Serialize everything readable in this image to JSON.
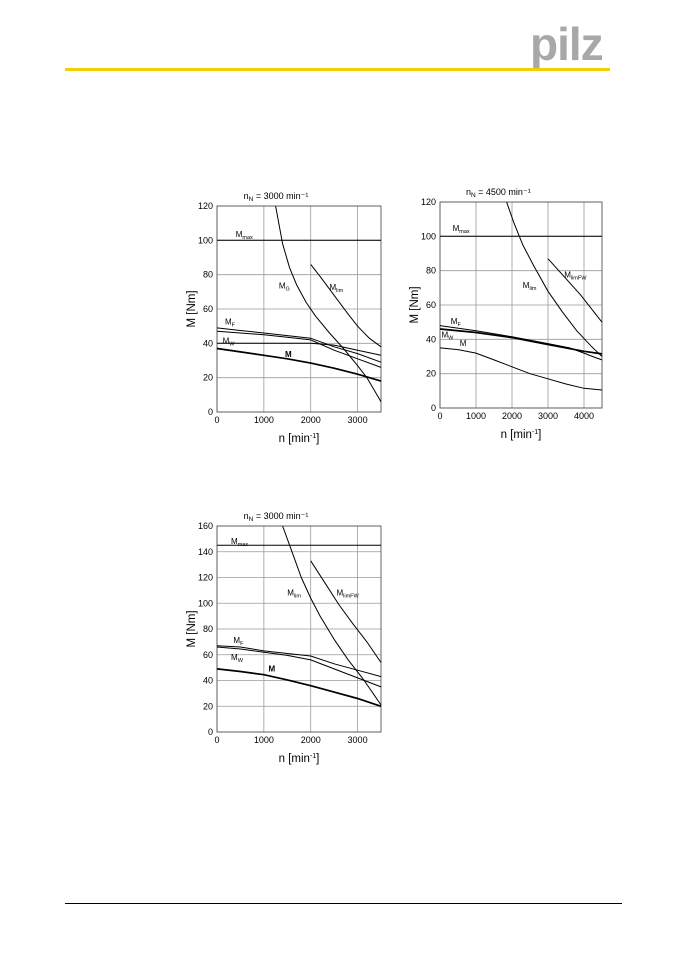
{
  "header": {
    "accent_color": "#f0d000",
    "logo_color": "#a8a8a8",
    "logo_text": "pilz"
  },
  "chart_data": [
    {
      "type": "line",
      "title": "n_N = 3000 min⁻¹",
      "xlabel": "n [min⁻¹]",
      "ylabel": "M [Nm]",
      "xlim": [
        0,
        3500
      ],
      "ylim": [
        0,
        120
      ],
      "xticks": [
        0,
        1000,
        2000,
        3000
      ],
      "yticks": [
        0,
        20,
        40,
        60,
        80,
        100,
        120
      ],
      "grid": true,
      "series": [
        {
          "name": "M_max",
          "label_main": "M",
          "label_sub": "max",
          "label_at": [
            400,
            102
          ],
          "weight": "normal",
          "points": [
            [
              0,
              100
            ],
            [
              3500,
              100
            ]
          ]
        },
        {
          "name": "M_G",
          "label_main": "M",
          "label_sub": "G",
          "label_at": [
            1320,
            72
          ],
          "weight": "normal",
          "points": [
            [
              1250,
              120
            ],
            [
              1400,
              98
            ],
            [
              1550,
              84
            ],
            [
              1700,
              74
            ],
            [
              1900,
              64
            ],
            [
              2100,
              56
            ],
            [
              2400,
              46
            ],
            [
              2700,
              37
            ],
            [
              3000,
              27
            ],
            [
              3200,
              20
            ],
            [
              3350,
              13
            ],
            [
              3500,
              6
            ]
          ]
        },
        {
          "name": "M_lim",
          "label_main": "M",
          "label_sub": "lim",
          "label_at": [
            2400,
            71
          ],
          "weight": "normal",
          "points": [
            [
              2000,
              86
            ],
            [
              2200,
              79
            ],
            [
              2500,
              68
            ],
            [
              2800,
              57
            ],
            [
              3000,
              50
            ],
            [
              3250,
              43
            ],
            [
              3500,
              38
            ]
          ]
        },
        {
          "name": "M_F",
          "label_main": "M",
          "label_sub": "F",
          "label_at": [
            170,
            51
          ],
          "weight": "normal",
          "points": [
            [
              0,
              49
            ],
            [
              500,
              47.5
            ],
            [
              1000,
              46
            ],
            [
              1500,
              44.5
            ],
            [
              2000,
              43
            ],
            [
              2500,
              38
            ],
            [
              3000,
              34
            ],
            [
              3500,
              29
            ]
          ]
        },
        {
          "name": "M_W",
          "label_main": "M",
          "label_sub": "W",
          "label_at": [
            120,
            40
          ],
          "weight": "normal",
          "points": [
            [
              0,
              47
            ],
            [
              500,
              46
            ],
            [
              1000,
              45
            ],
            [
              1500,
              43.5
            ],
            [
              2000,
              42
            ],
            [
              2500,
              36
            ],
            [
              3000,
              31
            ],
            [
              3500,
              26
            ]
          ]
        },
        {
          "name": "M_ref",
          "label_main": "M",
          "label_sub": "",
          "label_at": [
            1450,
            32
          ],
          "weight": "bold",
          "points": [
            [
              0,
              37
            ],
            [
              500,
              35
            ],
            [
              1000,
              33
            ],
            [
              1500,
              31
            ],
            [
              2000,
              28.5
            ],
            [
              2500,
              25.5
            ],
            [
              3000,
              22
            ],
            [
              3500,
              18
            ]
          ]
        },
        {
          "name": "M_base",
          "label_main": "",
          "label_sub": "",
          "label_at": [
            0,
            0
          ],
          "weight": "normal",
          "points": [
            [
              0,
              40
            ],
            [
              1000,
              40
            ],
            [
              2000,
              40
            ],
            [
              2500,
              39
            ],
            [
              3000,
              36
            ],
            [
              3500,
              33
            ]
          ]
        }
      ]
    },
    {
      "type": "line",
      "title": "n_N = 4500 min⁻¹",
      "xlabel": "n [min⁻¹]",
      "ylabel": "M [Nm]",
      "xlim": [
        0,
        4500
      ],
      "ylim": [
        0,
        120
      ],
      "xticks": [
        0,
        1000,
        2000,
        3000,
        4000
      ],
      "yticks": [
        0,
        20,
        40,
        60,
        80,
        100,
        120
      ],
      "grid": true,
      "series": [
        {
          "name": "M_max",
          "label_main": "M",
          "label_sub": "max",
          "label_at": [
            350,
            103
          ],
          "weight": "normal",
          "points": [
            [
              0,
              100
            ],
            [
              4500,
              100
            ]
          ]
        },
        {
          "name": "M_lim",
          "label_main": "M",
          "label_sub": "lim",
          "label_at": [
            2300,
            70
          ],
          "weight": "normal",
          "points": [
            [
              1850,
              120
            ],
            [
              2050,
              108
            ],
            [
              2300,
              95
            ],
            [
              2600,
              83
            ],
            [
              3000,
              68
            ],
            [
              3400,
              56
            ],
            [
              3800,
              45
            ],
            [
              4200,
              36
            ],
            [
              4500,
              30
            ]
          ]
        },
        {
          "name": "M_limFW",
          "label_main": "M",
          "label_sub": "limFW",
          "label_at": [
            3450,
            76
          ],
          "weight": "normal",
          "points": [
            [
              3000,
              87
            ],
            [
              3300,
              80
            ],
            [
              3600,
              73
            ],
            [
              3900,
              66
            ],
            [
              4200,
              58
            ],
            [
              4500,
              50
            ]
          ]
        },
        {
          "name": "M_F",
          "label_main": "M",
          "label_sub": "F",
          "label_at": [
            300,
            49
          ],
          "weight": "normal",
          "points": [
            [
              0,
              48
            ],
            [
              1000,
              45
            ],
            [
              2000,
              41.5
            ],
            [
              3000,
              37.5
            ],
            [
              3600,
              35
            ],
            [
              4000,
              32
            ],
            [
              4300,
              29.5
            ],
            [
              4500,
              28
            ]
          ]
        },
        {
          "name": "M_W",
          "label_main": "M",
          "label_sub": "W",
          "label_at": [
            40,
            41
          ],
          "weight": "bold",
          "points": [
            [
              0,
              46
            ],
            [
              1000,
              44
            ],
            [
              2000,
              41
            ],
            [
              3000,
              37
            ],
            [
              4000,
              33
            ],
            [
              4500,
              31.5
            ]
          ]
        },
        {
          "name": "M_ref",
          "label_main": "M",
          "label_sub": "",
          "label_at": [
            550,
            36
          ],
          "weight": "normal",
          "points": [
            [
              0,
              35
            ],
            [
              500,
              34
            ],
            [
              1000,
              32
            ],
            [
              1500,
              28
            ],
            [
              2000,
              24
            ],
            [
              2500,
              20
            ],
            [
              3000,
              17
            ],
            [
              3500,
              14
            ],
            [
              4000,
              11.5
            ],
            [
              4500,
              10.5
            ]
          ]
        }
      ]
    },
    {
      "type": "line",
      "title": "n_N = 3000 min⁻¹",
      "xlabel": "n [min⁻¹]",
      "ylabel": "M [Nm]",
      "xlim": [
        0,
        3500
      ],
      "ylim": [
        0,
        160
      ],
      "xticks": [
        0,
        1000,
        2000,
        3000
      ],
      "yticks": [
        0,
        20,
        40,
        60,
        80,
        100,
        120,
        140,
        160
      ],
      "grid": true,
      "series": [
        {
          "name": "M_max",
          "label_main": "M",
          "label_sub": "max",
          "label_at": [
            300,
            146
          ],
          "weight": "normal",
          "points": [
            [
              0,
              145
            ],
            [
              3500,
              145
            ]
          ]
        },
        {
          "name": "M_lim",
          "label_main": "M",
          "label_sub": "lim",
          "label_at": [
            1500,
            106
          ],
          "weight": "normal",
          "points": [
            [
              1400,
              160
            ],
            [
              1600,
              140
            ],
            [
              1800,
              120
            ],
            [
              2000,
              104
            ],
            [
              2200,
              90
            ],
            [
              2500,
              72
            ],
            [
              2800,
              56
            ],
            [
              3100,
              42
            ],
            [
              3350,
              29
            ],
            [
              3500,
              21
            ]
          ]
        },
        {
          "name": "M_limFW",
          "label_main": "M",
          "label_sub": "limFW",
          "label_at": [
            2550,
            106
          ],
          "weight": "normal",
          "points": [
            [
              2000,
              133
            ],
            [
              2300,
              116
            ],
            [
              2600,
              99
            ],
            [
              2900,
              84
            ],
            [
              3200,
              70
            ],
            [
              3500,
              54
            ]
          ]
        },
        {
          "name": "M_F",
          "label_main": "M",
          "label_sub": "F",
          "label_at": [
            350,
            69
          ],
          "weight": "normal",
          "points": [
            [
              0,
              67
            ],
            [
              500,
              66
            ],
            [
              1000,
              63
            ],
            [
              1500,
              61
            ],
            [
              2000,
              59
            ],
            [
              2500,
              53
            ],
            [
              3000,
              48
            ],
            [
              3500,
              43
            ]
          ]
        },
        {
          "name": "M_W",
          "label_main": "M",
          "label_sub": "W",
          "label_at": [
            300,
            56
          ],
          "weight": "normal",
          "points": [
            [
              0,
              66
            ],
            [
              500,
              64.5
            ],
            [
              1000,
              62
            ],
            [
              1500,
              59.5
            ],
            [
              2000,
              56
            ],
            [
              2500,
              49
            ],
            [
              3000,
              42
            ],
            [
              3500,
              35
            ]
          ]
        },
        {
          "name": "M_ref",
          "label_main": "M",
          "label_sub": "",
          "label_at": [
            1100,
            47
          ],
          "weight": "bold",
          "points": [
            [
              0,
              49
            ],
            [
              500,
              47
            ],
            [
              1000,
              44.5
            ],
            [
              1500,
              40.5
            ],
            [
              2000,
              36
            ],
            [
              2500,
              31
            ],
            [
              3000,
              26
            ],
            [
              3500,
              20
            ]
          ]
        }
      ]
    }
  ]
}
